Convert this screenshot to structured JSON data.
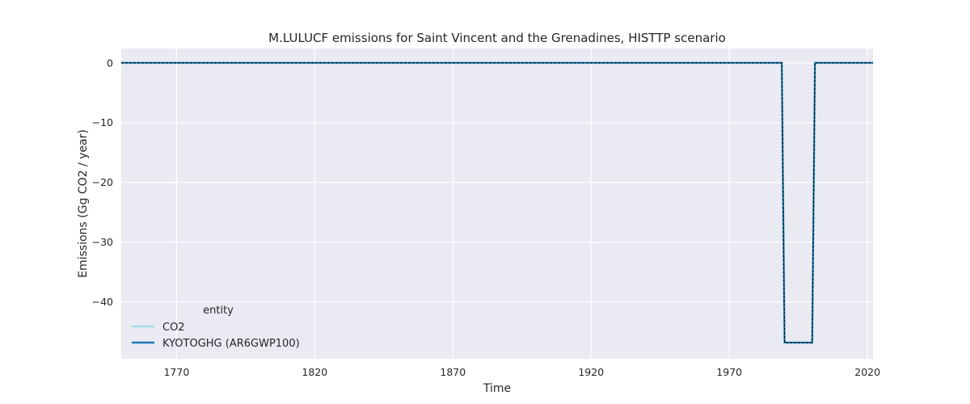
{
  "chart_data": {
    "type": "line",
    "title": "M.LULUCF emissions for Saint Vincent and the Grenadines, HISTTP scenario",
    "xlabel": "Time",
    "ylabel": "Emissions (Gg CO2 / year)",
    "xlim": [
      1750,
      2022
    ],
    "ylim": [
      -49.5,
      2.4
    ],
    "xticks": [
      1770,
      1820,
      1870,
      1920,
      1970,
      2020
    ],
    "yticks": [
      0,
      -10,
      -20,
      -30,
      -40
    ],
    "grid": true,
    "legend": {
      "title": "entity",
      "position": "lower-left"
    },
    "series": [
      {
        "name": "CO2",
        "color": "#a6dce8",
        "style": "solid",
        "x": [
          1750,
          1989,
          1990,
          2000,
          2001,
          2022
        ],
        "y": [
          0,
          0,
          -46.8,
          -46.8,
          0,
          0
        ]
      },
      {
        "name": "KYOTOGHG (AR6GWP100)",
        "color": "#1f77b4",
        "style": "solid",
        "x": [
          1750,
          1989,
          1990,
          2000,
          2001,
          2022
        ],
        "y": [
          0,
          0,
          -46.8,
          -46.8,
          0,
          0
        ]
      }
    ],
    "overlay": {
      "color": "#000000",
      "style": "dashed",
      "x": [
        1750,
        1989,
        1990,
        2000,
        2001,
        2022
      ],
      "y": [
        0,
        0,
        -46.8,
        -46.8,
        0,
        0
      ]
    }
  }
}
